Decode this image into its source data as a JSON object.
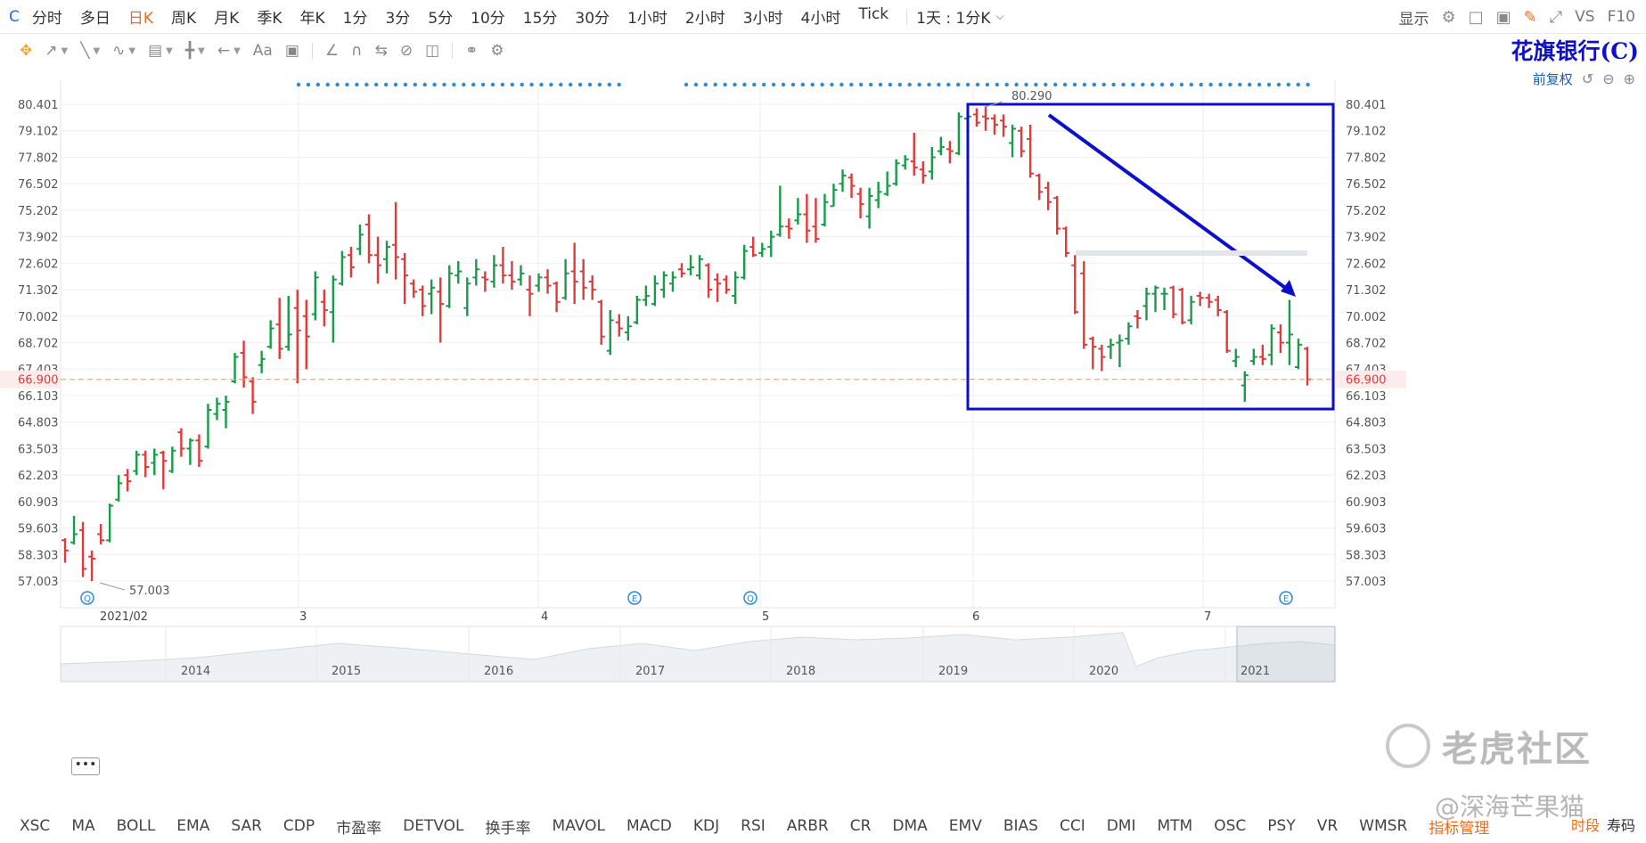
{
  "period_bar": {
    "symbol": "C",
    "tabs": [
      "分时",
      "多日",
      "日K",
      "周K",
      "月K",
      "季K",
      "年K",
      "1分",
      "3分",
      "5分",
      "10分",
      "15分",
      "30分",
      "1小时",
      "2小时",
      "3小时",
      "4小时",
      "Tick"
    ],
    "active_tab": "日K",
    "range_select": "1天 : 1分K",
    "display_label": "显示",
    "vs_label": "VS",
    "f10_label": "F10"
  },
  "stock_title": "花旗银行(C)",
  "adjust_label": "前复权",
  "indicator_bar": {
    "items": [
      "XSC",
      "MA",
      "BOLL",
      "EMA",
      "SAR",
      "CDP",
      "市盈率",
      "DETVOL",
      "换手率",
      "MAVOL",
      "MACD",
      "KDJ",
      "RSI",
      "ARBR",
      "CR",
      "DMA",
      "EMV",
      "BIAS",
      "CCI",
      "DMI",
      "MTM",
      "OSC",
      "PSY",
      "VR",
      "WMSR",
      "指标管理"
    ],
    "right_accent": "时段",
    "right_plain": "寿码"
  },
  "watermark": {
    "text": "老虎社区",
    "handle": "@深海芒果猫"
  },
  "colors": {
    "up": "#1a9a4a",
    "down": "#e03a3a",
    "annotation": "#0c10c8",
    "current": "#f29a5a",
    "accent": "#f06a1b"
  },
  "chart_data": {
    "type": "ohlc",
    "y_ticks": [
      "80.401",
      "79.102",
      "77.802",
      "76.502",
      "75.202",
      "73.902",
      "72.602",
      "71.302",
      "70.002",
      "68.702",
      "67.403",
      "66.103",
      "64.803",
      "63.503",
      "62.203",
      "60.903",
      "59.603",
      "58.303",
      "57.003"
    ],
    "ylim": [
      57.003,
      80.401
    ],
    "x_labels": [
      "2021/02",
      "3",
      "4",
      "5",
      "6",
      "7"
    ],
    "high_label": "80.290",
    "low_label": "57.003",
    "current_price": "66.900",
    "event_markers": [
      "Q",
      "E",
      "Q",
      "E"
    ],
    "navigator_years": [
      "2014",
      "2015",
      "2016",
      "2017",
      "2018",
      "2019",
      "2020",
      "2021"
    ],
    "bars": [
      {
        "o": 59.0,
        "h": 59.1,
        "l": 57.9,
        "c": 58.5
      },
      {
        "o": 58.9,
        "h": 60.2,
        "l": 58.8,
        "c": 59.3
      },
      {
        "o": 59.5,
        "h": 59.9,
        "l": 57.2,
        "c": 57.6
      },
      {
        "o": 58.2,
        "h": 58.5,
        "l": 57.0,
        "c": 58.1
      },
      {
        "o": 59.3,
        "h": 59.8,
        "l": 58.8,
        "c": 59.0
      },
      {
        "o": 59.0,
        "h": 60.8,
        "l": 58.9,
        "c": 60.7
      },
      {
        "o": 61.0,
        "h": 62.2,
        "l": 60.9,
        "c": 61.8
      },
      {
        "o": 62.2,
        "h": 62.5,
        "l": 61.4,
        "c": 61.9
      },
      {
        "o": 62.4,
        "h": 63.4,
        "l": 62.2,
        "c": 63.2
      },
      {
        "o": 63.2,
        "h": 63.4,
        "l": 62.1,
        "c": 62.6
      },
      {
        "o": 62.8,
        "h": 63.5,
        "l": 62.2,
        "c": 63.2
      },
      {
        "o": 63.3,
        "h": 63.4,
        "l": 61.5,
        "c": 62.9
      },
      {
        "o": 62.4,
        "h": 63.6,
        "l": 62.3,
        "c": 63.4
      },
      {
        "o": 64.3,
        "h": 64.5,
        "l": 63.1,
        "c": 63.5
      },
      {
        "o": 63.5,
        "h": 64.0,
        "l": 62.7,
        "c": 63.9
      },
      {
        "o": 63.9,
        "h": 64.2,
        "l": 62.6,
        "c": 62.9
      },
      {
        "o": 63.6,
        "h": 65.7,
        "l": 63.5,
        "c": 65.4
      },
      {
        "o": 65.2,
        "h": 66.0,
        "l": 64.9,
        "c": 65.7
      },
      {
        "o": 65.4,
        "h": 66.1,
        "l": 64.5,
        "c": 65.8
      },
      {
        "o": 66.8,
        "h": 68.2,
        "l": 66.7,
        "c": 68.0
      },
      {
        "o": 68.2,
        "h": 68.8,
        "l": 66.5,
        "c": 67.0
      },
      {
        "o": 66.8,
        "h": 67.0,
        "l": 65.2,
        "c": 65.8
      },
      {
        "o": 67.6,
        "h": 68.3,
        "l": 67.2,
        "c": 67.9
      },
      {
        "o": 68.5,
        "h": 69.8,
        "l": 68.4,
        "c": 69.4
      },
      {
        "o": 69.6,
        "h": 70.9,
        "l": 67.9,
        "c": 68.4
      },
      {
        "o": 68.5,
        "h": 71.0,
        "l": 68.3,
        "c": 69.1
      },
      {
        "o": 70.4,
        "h": 71.3,
        "l": 66.7,
        "c": 69.3
      },
      {
        "o": 70.0,
        "h": 70.8,
        "l": 67.4,
        "c": 69.0
      },
      {
        "o": 70.1,
        "h": 72.2,
        "l": 69.8,
        "c": 71.9
      },
      {
        "o": 70.7,
        "h": 71.3,
        "l": 69.5,
        "c": 70.3
      },
      {
        "o": 70.2,
        "h": 72.0,
        "l": 68.7,
        "c": 71.8
      },
      {
        "o": 71.6,
        "h": 73.2,
        "l": 71.5,
        "c": 72.9
      },
      {
        "o": 73.0,
        "h": 73.4,
        "l": 71.9,
        "c": 72.4
      },
      {
        "o": 73.3,
        "h": 74.5,
        "l": 73.0,
        "c": 74.0
      },
      {
        "o": 74.5,
        "h": 75.0,
        "l": 72.6,
        "c": 73.0
      },
      {
        "o": 73.0,
        "h": 73.9,
        "l": 71.6,
        "c": 72.5
      },
      {
        "o": 72.8,
        "h": 73.7,
        "l": 72.1,
        "c": 73.4
      },
      {
        "o": 73.5,
        "h": 75.6,
        "l": 71.8,
        "c": 72.9
      },
      {
        "o": 72.8,
        "h": 73.1,
        "l": 70.6,
        "c": 72.0
      },
      {
        "o": 71.6,
        "h": 71.8,
        "l": 70.9,
        "c": 71.2
      },
      {
        "o": 71.3,
        "h": 71.5,
        "l": 70.0,
        "c": 70.5
      },
      {
        "o": 71.1,
        "h": 71.8,
        "l": 70.1,
        "c": 71.4
      },
      {
        "o": 71.2,
        "h": 71.9,
        "l": 68.7,
        "c": 70.6
      },
      {
        "o": 70.5,
        "h": 72.5,
        "l": 70.4,
        "c": 72.1
      },
      {
        "o": 72.0,
        "h": 72.7,
        "l": 71.6,
        "c": 72.2
      },
      {
        "o": 70.4,
        "h": 71.9,
        "l": 70.0,
        "c": 71.6
      },
      {
        "o": 71.9,
        "h": 72.8,
        "l": 71.5,
        "c": 72.3
      },
      {
        "o": 71.9,
        "h": 72.2,
        "l": 71.2,
        "c": 71.8
      },
      {
        "o": 71.7,
        "h": 73.0,
        "l": 71.4,
        "c": 72.5
      },
      {
        "o": 72.5,
        "h": 73.4,
        "l": 71.6,
        "c": 72.0
      },
      {
        "o": 72.0,
        "h": 72.7,
        "l": 71.3,
        "c": 71.7
      },
      {
        "o": 71.8,
        "h": 72.5,
        "l": 71.5,
        "c": 72.1
      },
      {
        "o": 71.3,
        "h": 72.0,
        "l": 70.0,
        "c": 71.1
      },
      {
        "o": 71.5,
        "h": 72.1,
        "l": 71.2,
        "c": 71.9
      },
      {
        "o": 71.9,
        "h": 72.3,
        "l": 71.1,
        "c": 71.5
      },
      {
        "o": 71.6,
        "h": 71.7,
        "l": 70.2,
        "c": 70.7
      },
      {
        "o": 70.9,
        "h": 72.8,
        "l": 70.8,
        "c": 72.1
      },
      {
        "o": 72.2,
        "h": 73.6,
        "l": 70.6,
        "c": 71.7
      },
      {
        "o": 72.2,
        "h": 72.8,
        "l": 70.8,
        "c": 71.4
      },
      {
        "o": 71.7,
        "h": 72.0,
        "l": 70.8,
        "c": 71.3
      },
      {
        "o": 70.7,
        "h": 70.8,
        "l": 68.6,
        "c": 69.0
      },
      {
        "o": 68.3,
        "h": 70.3,
        "l": 68.1,
        "c": 69.8
      },
      {
        "o": 69.7,
        "h": 70.1,
        "l": 69.0,
        "c": 69.4
      },
      {
        "o": 69.2,
        "h": 70.0,
        "l": 68.8,
        "c": 69.5
      },
      {
        "o": 69.7,
        "h": 71.0,
        "l": 69.6,
        "c": 70.8
      },
      {
        "o": 70.8,
        "h": 71.5,
        "l": 70.5,
        "c": 71.0
      },
      {
        "o": 70.6,
        "h": 72.0,
        "l": 70.5,
        "c": 71.6
      },
      {
        "o": 71.3,
        "h": 72.2,
        "l": 70.9,
        "c": 72.0
      },
      {
        "o": 71.6,
        "h": 72.2,
        "l": 71.2,
        "c": 71.9
      },
      {
        "o": 72.3,
        "h": 72.6,
        "l": 71.9,
        "c": 72.1
      },
      {
        "o": 72.3,
        "h": 73.0,
        "l": 72.0,
        "c": 72.4
      },
      {
        "o": 72.0,
        "h": 73.0,
        "l": 71.8,
        "c": 72.8
      },
      {
        "o": 72.5,
        "h": 72.6,
        "l": 70.9,
        "c": 71.3
      },
      {
        "o": 71.8,
        "h": 72.1,
        "l": 70.7,
        "c": 71.6
      },
      {
        "o": 71.8,
        "h": 72.0,
        "l": 71.1,
        "c": 71.3
      },
      {
        "o": 71.0,
        "h": 72.2,
        "l": 70.6,
        "c": 71.9
      },
      {
        "o": 71.9,
        "h": 73.5,
        "l": 71.8,
        "c": 73.2
      },
      {
        "o": 73.4,
        "h": 73.9,
        "l": 72.9,
        "c": 73.0
      },
      {
        "o": 73.1,
        "h": 73.6,
        "l": 72.9,
        "c": 73.3
      },
      {
        "o": 73.4,
        "h": 74.2,
        "l": 72.9,
        "c": 73.9
      },
      {
        "o": 74.0,
        "h": 76.4,
        "l": 73.9,
        "c": 74.4
      },
      {
        "o": 74.4,
        "h": 74.8,
        "l": 73.8,
        "c": 74.3
      },
      {
        "o": 74.7,
        "h": 75.8,
        "l": 74.5,
        "c": 75.0
      },
      {
        "o": 75.0,
        "h": 76.0,
        "l": 73.6,
        "c": 74.2
      },
      {
        "o": 74.4,
        "h": 75.8,
        "l": 73.6,
        "c": 73.8
      },
      {
        "o": 74.5,
        "h": 76.0,
        "l": 74.4,
        "c": 75.6
      },
      {
        "o": 75.4,
        "h": 76.5,
        "l": 75.4,
        "c": 76.2
      },
      {
        "o": 76.5,
        "h": 77.2,
        "l": 76.1,
        "c": 76.9
      },
      {
        "o": 76.8,
        "h": 77.0,
        "l": 75.8,
        "c": 76.4
      },
      {
        "o": 76.0,
        "h": 76.3,
        "l": 74.8,
        "c": 75.5
      },
      {
        "o": 74.9,
        "h": 76.3,
        "l": 74.3,
        "c": 75.9
      },
      {
        "o": 75.7,
        "h": 76.6,
        "l": 75.3,
        "c": 76.1
      },
      {
        "o": 76.0,
        "h": 77.1,
        "l": 75.9,
        "c": 76.4
      },
      {
        "o": 76.5,
        "h": 77.7,
        "l": 76.4,
        "c": 77.5
      },
      {
        "o": 77.4,
        "h": 77.9,
        "l": 77.2,
        "c": 77.7
      },
      {
        "o": 77.6,
        "h": 79.0,
        "l": 76.9,
        "c": 77.3
      },
      {
        "o": 77.2,
        "h": 77.6,
        "l": 76.5,
        "c": 76.9
      },
      {
        "o": 77.1,
        "h": 78.3,
        "l": 76.7,
        "c": 77.8
      },
      {
        "o": 78.1,
        "h": 78.8,
        "l": 77.9,
        "c": 78.3
      },
      {
        "o": 78.2,
        "h": 78.6,
        "l": 77.5,
        "c": 78.1
      },
      {
        "o": 78.0,
        "h": 80.0,
        "l": 77.9,
        "c": 79.8
      },
      {
        "o": 79.7,
        "h": 80.3,
        "l": 79.1,
        "c": 79.8
      },
      {
        "o": 79.9,
        "h": 80.2,
        "l": 79.3,
        "c": 79.5
      },
      {
        "o": 79.8,
        "h": 80.3,
        "l": 79.1,
        "c": 79.7
      },
      {
        "o": 79.7,
        "h": 79.9,
        "l": 78.9,
        "c": 79.4
      },
      {
        "o": 79.6,
        "h": 79.9,
        "l": 78.8,
        "c": 79.3
      },
      {
        "o": 78.5,
        "h": 79.4,
        "l": 77.8,
        "c": 79.2
      },
      {
        "o": 79.1,
        "h": 79.3,
        "l": 77.8,
        "c": 78.1
      },
      {
        "o": 78.7,
        "h": 79.4,
        "l": 76.8,
        "c": 77.0
      },
      {
        "o": 76.9,
        "h": 77.0,
        "l": 75.7,
        "c": 76.1
      },
      {
        "o": 76.3,
        "h": 76.6,
        "l": 75.2,
        "c": 75.6
      },
      {
        "o": 75.8,
        "h": 75.9,
        "l": 74.0,
        "c": 74.3
      },
      {
        "o": 74.3,
        "h": 74.4,
        "l": 72.9,
        "c": 73.1
      },
      {
        "o": 72.5,
        "h": 73.0,
        "l": 70.1,
        "c": 70.2
      },
      {
        "o": 72.1,
        "h": 72.7,
        "l": 68.4,
        "c": 68.6
      },
      {
        "o": 68.9,
        "h": 69.0,
        "l": 67.4,
        "c": 68.5
      },
      {
        "o": 68.4,
        "h": 68.6,
        "l": 67.3,
        "c": 68.0
      },
      {
        "o": 68.5,
        "h": 68.9,
        "l": 67.9,
        "c": 68.6
      },
      {
        "o": 68.7,
        "h": 69.1,
        "l": 67.5,
        "c": 68.8
      },
      {
        "o": 68.9,
        "h": 69.7,
        "l": 68.6,
        "c": 69.5
      },
      {
        "o": 70.0,
        "h": 70.3,
        "l": 69.4,
        "c": 69.9
      },
      {
        "o": 70.5,
        "h": 71.4,
        "l": 69.8,
        "c": 71.1
      },
      {
        "o": 71.1,
        "h": 71.5,
        "l": 70.2,
        "c": 71.4
      },
      {
        "o": 71.1,
        "h": 71.4,
        "l": 70.3,
        "c": 71.1
      },
      {
        "o": 71.4,
        "h": 71.5,
        "l": 69.9,
        "c": 70.1
      },
      {
        "o": 71.3,
        "h": 71.4,
        "l": 69.6,
        "c": 69.7
      },
      {
        "o": 69.8,
        "h": 71.0,
        "l": 69.6,
        "c": 70.7
      },
      {
        "o": 71.0,
        "h": 71.2,
        "l": 70.5,
        "c": 70.9
      },
      {
        "o": 70.9,
        "h": 71.1,
        "l": 70.4,
        "c": 70.7
      },
      {
        "o": 70.8,
        "h": 71.0,
        "l": 70.0,
        "c": 70.3
      },
      {
        "o": 70.2,
        "h": 70.3,
        "l": 68.2,
        "c": 68.3
      },
      {
        "o": 67.8,
        "h": 68.4,
        "l": 67.5,
        "c": 68.0
      },
      {
        "o": 66.6,
        "h": 67.3,
        "l": 65.8,
        "c": 67.1
      },
      {
        "o": 67.8,
        "h": 68.4,
        "l": 67.6,
        "c": 68.0
      },
      {
        "o": 68.0,
        "h": 68.6,
        "l": 67.6,
        "c": 67.9
      },
      {
        "o": 68.1,
        "h": 69.6,
        "l": 67.6,
        "c": 69.4
      },
      {
        "o": 69.2,
        "h": 69.6,
        "l": 68.2,
        "c": 68.7
      },
      {
        "o": 68.7,
        "h": 70.8,
        "l": 67.6,
        "c": 69.1
      },
      {
        "o": 67.5,
        "h": 68.9,
        "l": 67.4,
        "c": 68.6
      },
      {
        "o": 68.4,
        "h": 68.5,
        "l": 66.6,
        "c": 66.9
      }
    ]
  }
}
